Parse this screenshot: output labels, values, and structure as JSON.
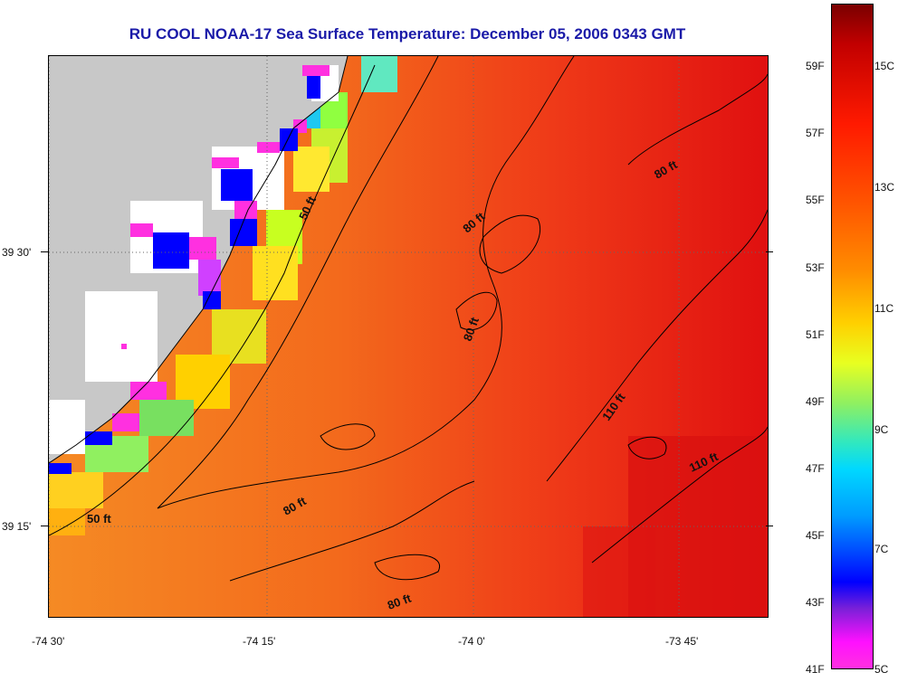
{
  "title": "RU COOL  NOAA-17  Sea Surface Temperature:  December 05, 2006 0343 GMT",
  "map": {
    "lat_labels": [
      "39 30'",
      "39 15'"
    ],
    "lon_labels": [
      "-74 30'",
      "-74 15'",
      "-74 0'",
      "-73 45'"
    ],
    "isobaths": [
      {
        "label": "50 ft"
      },
      {
        "label": "50 ft"
      },
      {
        "label": "80 ft"
      },
      {
        "label": "80 ft"
      },
      {
        "label": "80 ft"
      },
      {
        "label": "80 ft"
      },
      {
        "label": "80 ft"
      },
      {
        "label": "110 ft"
      },
      {
        "label": "110 ft"
      }
    ],
    "colors": {
      "land": "#c8c8c8",
      "ocean_warm": "#f2671b",
      "ocean_hot": "#ec1a14",
      "cloud": "#ffffff",
      "contour": "#000000"
    }
  },
  "colorbar": {
    "fahrenheit_labels": [
      "59F",
      "57F",
      "55F",
      "53F",
      "51F",
      "49F",
      "47F",
      "45F",
      "43F",
      "41F"
    ],
    "celsius_labels": [
      "15C",
      "13C",
      "11C",
      "9C",
      "7C",
      "5C"
    ]
  }
}
